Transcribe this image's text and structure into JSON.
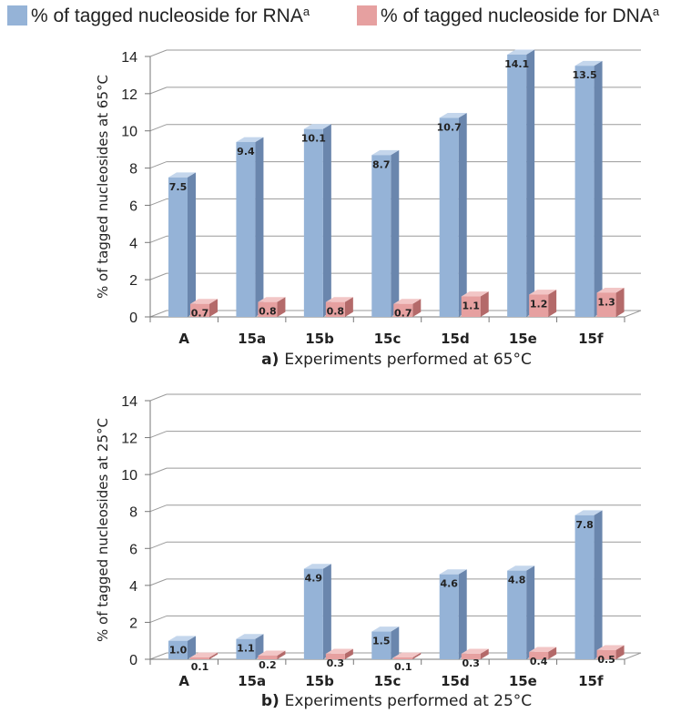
{
  "legend": {
    "rna_label": "% of tagged nucleoside for RNA",
    "rna_sup": "a",
    "dna_label": "% of tagged nucleoside for DNA",
    "dna_sup": "a"
  },
  "colors": {
    "rna_front": "#95b3d7",
    "rna_side": "#6a86ad",
    "rna_top": "#c4d6ec",
    "dna_front": "#e6a0a0",
    "dna_side": "#b46a6a",
    "dna_top": "#f2c6c6",
    "grid": "#9a9a9a",
    "text": "#222222"
  },
  "chart_data": [
    {
      "type": "bar",
      "panel_label": "a)",
      "xlabel": "Experiments performed at 65°C",
      "ylabel": "% of tagged nucleosides  at 65°C",
      "categories": [
        "A",
        "15a",
        "15b",
        "15c",
        "15d",
        "15e",
        "15f"
      ],
      "series": [
        {
          "name": "% of tagged nucleoside for RNA",
          "values": [
            7.5,
            9.4,
            10.1,
            8.7,
            10.7,
            14.1,
            13.5
          ]
        },
        {
          "name": "% of tagged nucleoside for DNA",
          "values": [
            0.7,
            0.8,
            0.8,
            0.7,
            1.1,
            1.2,
            1.3
          ]
        }
      ],
      "value_labels": {
        "rna": [
          "7.5",
          "9.4",
          "10.1",
          "8.7",
          "10.7",
          "14.1",
          "13.5"
        ],
        "dna": [
          "0.7",
          "0.8",
          "0.8",
          "0.7",
          "1.1",
          "1.2",
          "1.3"
        ]
      },
      "ylim": [
        0,
        14
      ],
      "yticks": [
        "0",
        "2",
        "4",
        "6",
        "8",
        "10",
        "12",
        "14"
      ],
      "grid": true
    },
    {
      "type": "bar",
      "panel_label": "b)",
      "xlabel": "Experiments performed at 25°C",
      "ylabel": "% of tagged nucleosides at 25°C",
      "categories": [
        "A",
        "15a",
        "15b",
        "15c",
        "15d",
        "15e",
        "15f"
      ],
      "series": [
        {
          "name": "% of tagged nucleoside for RNA",
          "values": [
            1.0,
            1.1,
            4.9,
            1.5,
            4.6,
            4.8,
            7.8
          ]
        },
        {
          "name": "% of tagged nucleoside for DNA",
          "values": [
            0.1,
            0.2,
            0.3,
            0.1,
            0.3,
            0.4,
            0.5
          ]
        }
      ],
      "value_labels": {
        "rna": [
          "1.0",
          "1.1",
          "4.9",
          "1.5",
          "4.6",
          "4.8",
          "7.8"
        ],
        "dna": [
          "0.1",
          "0.2",
          "0.3",
          "0.1",
          "0.3",
          "0.4",
          "0.5"
        ]
      },
      "ylim": [
        0,
        14
      ],
      "yticks": [
        "0",
        "2",
        "4",
        "6",
        "8",
        "10",
        "12",
        "14"
      ],
      "grid": true
    }
  ]
}
